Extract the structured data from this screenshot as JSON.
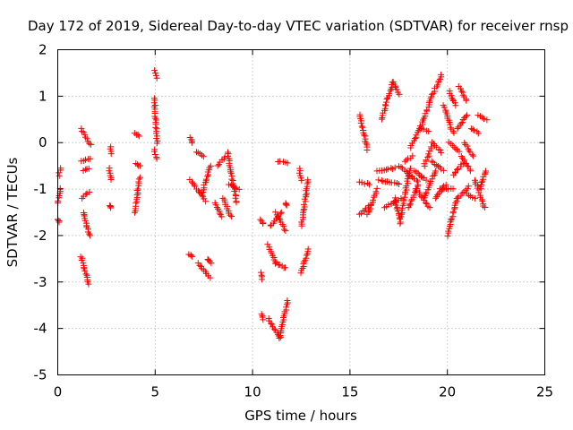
{
  "chart_data": {
    "type": "scatter",
    "title": "Day 172 of 2019, Sidereal Day-to-day VTEC variation (SDTVAR) for receiver rnsp",
    "xlabel": "GPS time / hours",
    "ylabel": "SDTVAR / TECUs",
    "xlim": [
      0,
      25
    ],
    "ylim": [
      -5,
      2
    ],
    "xticks": [
      "0",
      "5",
      "10",
      "15",
      "20",
      "25"
    ],
    "yticks": [
      "-5",
      "-4",
      "-3",
      "-2",
      "-1",
      "0",
      "1",
      "2"
    ],
    "grid": true,
    "marker": "+",
    "color": "#ff0000",
    "segments": [
      {
        "x0": 0.0,
        "y0": -1.65,
        "x1": 0.1,
        "y1": -1.7
      },
      {
        "x0": 0.0,
        "y0": -1.3,
        "x1": 0.15,
        "y1": -1.0
      },
      {
        "x0": 0.05,
        "y0": -0.7,
        "x1": 0.15,
        "y1": -0.55
      },
      {
        "x0": 1.2,
        "y0": 0.3,
        "x1": 1.7,
        "y1": -0.05
      },
      {
        "x0": 1.2,
        "y0": -0.4,
        "x1": 1.7,
        "y1": -0.35
      },
      {
        "x0": 1.3,
        "y0": -0.6,
        "x1": 1.6,
        "y1": -0.55
      },
      {
        "x0": 1.25,
        "y0": -1.2,
        "x1": 1.6,
        "y1": -1.05
      },
      {
        "x0": 1.3,
        "y0": -1.5,
        "x1": 1.65,
        "y1": -2.0
      },
      {
        "x0": 1.2,
        "y0": -2.45,
        "x1": 1.6,
        "y1": -3.05
      },
      {
        "x0": 2.7,
        "y0": -0.1,
        "x1": 2.75,
        "y1": -0.25
      },
      {
        "x0": 2.65,
        "y0": -0.55,
        "x1": 2.75,
        "y1": -0.8
      },
      {
        "x0": 2.7,
        "y0": -1.35,
        "x1": 2.75,
        "y1": -1.4
      },
      {
        "x0": 3.95,
        "y0": 0.2,
        "x1": 4.2,
        "y1": 0.15
      },
      {
        "x0": 4.0,
        "y0": -0.45,
        "x1": 4.2,
        "y1": -0.5
      },
      {
        "x0": 3.95,
        "y0": -1.5,
        "x1": 4.2,
        "y1": -0.75
      },
      {
        "x0": 5.0,
        "y0": 1.55,
        "x1": 5.1,
        "y1": 1.4
      },
      {
        "x0": 4.95,
        "y0": 0.95,
        "x1": 5.1,
        "y1": 0.0
      },
      {
        "x0": 4.95,
        "y0": -0.15,
        "x1": 5.1,
        "y1": -0.35
      },
      {
        "x0": 6.8,
        "y0": 0.1,
        "x1": 6.9,
        "y1": 0.0
      },
      {
        "x0": 6.75,
        "y0": -2.4,
        "x1": 6.9,
        "y1": -2.45
      },
      {
        "x0": 6.8,
        "y0": -0.8,
        "x1": 7.6,
        "y1": -1.25
      },
      {
        "x0": 7.1,
        "y0": -0.2,
        "x1": 7.5,
        "y1": -0.3
      },
      {
        "x0": 7.2,
        "y0": -2.6,
        "x1": 7.8,
        "y1": -2.9
      },
      {
        "x0": 7.4,
        "y0": -1.1,
        "x1": 7.85,
        "y1": -0.5
      },
      {
        "x0": 7.7,
        "y0": -2.5,
        "x1": 7.9,
        "y1": -2.6
      },
      {
        "x0": 8.1,
        "y0": -1.3,
        "x1": 8.4,
        "y1": -1.6
      },
      {
        "x0": 8.2,
        "y0": -0.5,
        "x1": 8.6,
        "y1": -0.3
      },
      {
        "x0": 8.5,
        "y0": -1.2,
        "x1": 8.9,
        "y1": -1.6
      },
      {
        "x0": 8.7,
        "y0": -0.2,
        "x1": 9.2,
        "y1": -1.3
      },
      {
        "x0": 8.8,
        "y0": -0.9,
        "x1": 9.3,
        "y1": -1.0
      },
      {
        "x0": 10.4,
        "y0": -2.8,
        "x1": 10.5,
        "y1": -2.95
      },
      {
        "x0": 10.4,
        "y0": -1.65,
        "x1": 10.55,
        "y1": -1.75
      },
      {
        "x0": 10.45,
        "y0": -3.7,
        "x1": 10.55,
        "y1": -3.8
      },
      {
        "x0": 10.8,
        "y0": -3.8,
        "x1": 11.4,
        "y1": -4.2
      },
      {
        "x0": 11.4,
        "y0": -4.2,
        "x1": 11.8,
        "y1": -3.4
      },
      {
        "x0": 10.8,
        "y0": -2.2,
        "x1": 11.2,
        "y1": -2.6
      },
      {
        "x0": 11.2,
        "y0": -2.6,
        "x1": 11.7,
        "y1": -2.7
      },
      {
        "x0": 10.9,
        "y0": -1.8,
        "x1": 11.5,
        "y1": -1.5
      },
      {
        "x0": 11.2,
        "y0": -1.5,
        "x1": 11.7,
        "y1": -1.9
      },
      {
        "x0": 11.3,
        "y0": -0.4,
        "x1": 11.8,
        "y1": -0.45
      },
      {
        "x0": 11.7,
        "y0": -1.3,
        "x1": 11.75,
        "y1": -1.35
      },
      {
        "x0": 12.4,
        "y0": -0.55,
        "x1": 12.5,
        "y1": -0.8
      },
      {
        "x0": 12.5,
        "y0": -2.8,
        "x1": 12.85,
        "y1": -2.3
      },
      {
        "x0": 12.5,
        "y0": -1.8,
        "x1": 12.85,
        "y1": -0.8
      },
      {
        "x0": 15.5,
        "y0": 0.6,
        "x1": 15.9,
        "y1": -0.15
      },
      {
        "x0": 15.5,
        "y0": -0.85,
        "x1": 16.0,
        "y1": -0.9
      },
      {
        "x0": 15.5,
        "y0": -1.55,
        "x1": 16.0,
        "y1": -1.35
      },
      {
        "x0": 15.9,
        "y0": -1.55,
        "x1": 16.4,
        "y1": -1.0
      },
      {
        "x0": 16.4,
        "y0": -0.6,
        "x1": 17.3,
        "y1": -0.55
      },
      {
        "x0": 16.5,
        "y0": -0.8,
        "x1": 17.5,
        "y1": -0.9
      },
      {
        "x0": 16.6,
        "y0": 0.5,
        "x1": 17.2,
        "y1": 1.3
      },
      {
        "x0": 17.2,
        "y0": 1.3,
        "x1": 17.5,
        "y1": 1.05
      },
      {
        "x0": 16.8,
        "y0": -1.4,
        "x1": 17.6,
        "y1": -1.2
      },
      {
        "x0": 17.3,
        "y0": -1.2,
        "x1": 17.6,
        "y1": -1.75
      },
      {
        "x0": 17.6,
        "y0": -1.6,
        "x1": 18.1,
        "y1": -0.55
      },
      {
        "x0": 17.5,
        "y0": -0.5,
        "x1": 18.5,
        "y1": -0.85
      },
      {
        "x0": 17.8,
        "y0": -0.4,
        "x1": 18.2,
        "y1": -0.3
      },
      {
        "x0": 18.0,
        "y0": -1.4,
        "x1": 18.5,
        "y1": -0.9
      },
      {
        "x0": 18.1,
        "y0": -0.1,
        "x1": 18.6,
        "y1": 0.3
      },
      {
        "x0": 18.3,
        "y0": -0.6,
        "x1": 18.9,
        "y1": -0.8
      },
      {
        "x0": 18.4,
        "y0": -1.0,
        "x1": 19.1,
        "y1": -1.4
      },
      {
        "x0": 18.6,
        "y0": 0.3,
        "x1": 19.1,
        "y1": 0.85
      },
      {
        "x0": 18.7,
        "y0": 0.3,
        "x1": 19.0,
        "y1": 0.25
      },
      {
        "x0": 18.8,
        "y0": -0.5,
        "x1": 19.2,
        "y1": -0.1
      },
      {
        "x0": 18.8,
        "y0": -1.2,
        "x1": 19.4,
        "y1": -0.6
      },
      {
        "x0": 19.1,
        "y0": 0.9,
        "x1": 19.7,
        "y1": 1.45
      },
      {
        "x0": 19.2,
        "y0": -0.4,
        "x1": 19.8,
        "y1": -0.6
      },
      {
        "x0": 19.2,
        "y0": 0.0,
        "x1": 19.7,
        "y1": -0.2
      },
      {
        "x0": 19.4,
        "y0": -1.2,
        "x1": 19.9,
        "y1": -0.9
      },
      {
        "x0": 19.6,
        "y0": -1.0,
        "x1": 20.3,
        "y1": -1.0
      },
      {
        "x0": 19.8,
        "y0": 0.8,
        "x1": 20.3,
        "y1": 0.2
      },
      {
        "x0": 20.0,
        "y0": -2.0,
        "x1": 20.5,
        "y1": -1.2
      },
      {
        "x0": 20.1,
        "y0": 1.1,
        "x1": 20.4,
        "y1": 0.8
      },
      {
        "x0": 20.1,
        "y0": 0.0,
        "x1": 20.6,
        "y1": -0.2
      },
      {
        "x0": 20.3,
        "y0": -0.7,
        "x1": 20.8,
        "y1": -0.45
      },
      {
        "x0": 20.5,
        "y0": 0.3,
        "x1": 21.0,
        "y1": 0.6
      },
      {
        "x0": 20.5,
        "y0": -1.2,
        "x1": 21.1,
        "y1": -0.95
      },
      {
        "x0": 20.6,
        "y0": 1.2,
        "x1": 21.0,
        "y1": 0.9
      },
      {
        "x0": 20.7,
        "y0": -0.3,
        "x1": 21.2,
        "y1": -0.6
      },
      {
        "x0": 20.9,
        "y0": 0.0,
        "x1": 21.3,
        "y1": -0.3
      },
      {
        "x0": 21.0,
        "y0": -1.1,
        "x1": 21.4,
        "y1": -1.2
      },
      {
        "x0": 21.2,
        "y0": 0.3,
        "x1": 21.6,
        "y1": 0.2
      },
      {
        "x0": 21.4,
        "y0": -0.8,
        "x1": 21.9,
        "y1": -1.4
      },
      {
        "x0": 21.6,
        "y0": 0.6,
        "x1": 22.0,
        "y1": 0.5
      },
      {
        "x0": 21.7,
        "y0": -1.0,
        "x1": 21.95,
        "y1": -0.6
      }
    ]
  }
}
